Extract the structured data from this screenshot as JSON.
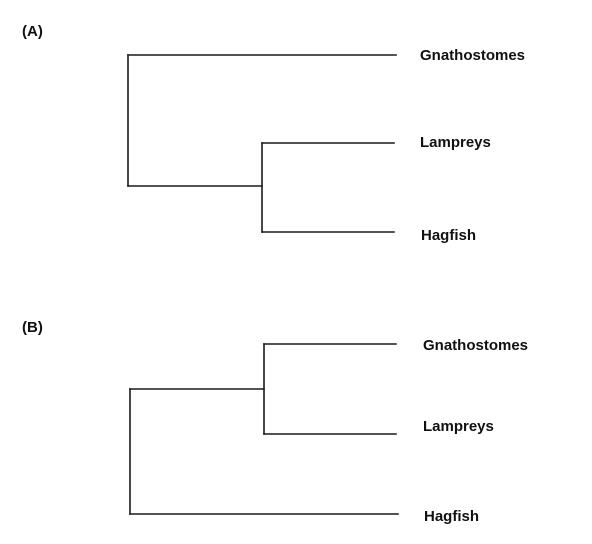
{
  "panels": [
    {
      "label": "(A)",
      "taxa": [
        "Gnathostomes",
        "Lampreys",
        "Hagfish"
      ]
    },
    {
      "label": "(B)",
      "taxa": [
        "Gnathostomes",
        "Lampreys",
        "Hagfish"
      ]
    }
  ]
}
